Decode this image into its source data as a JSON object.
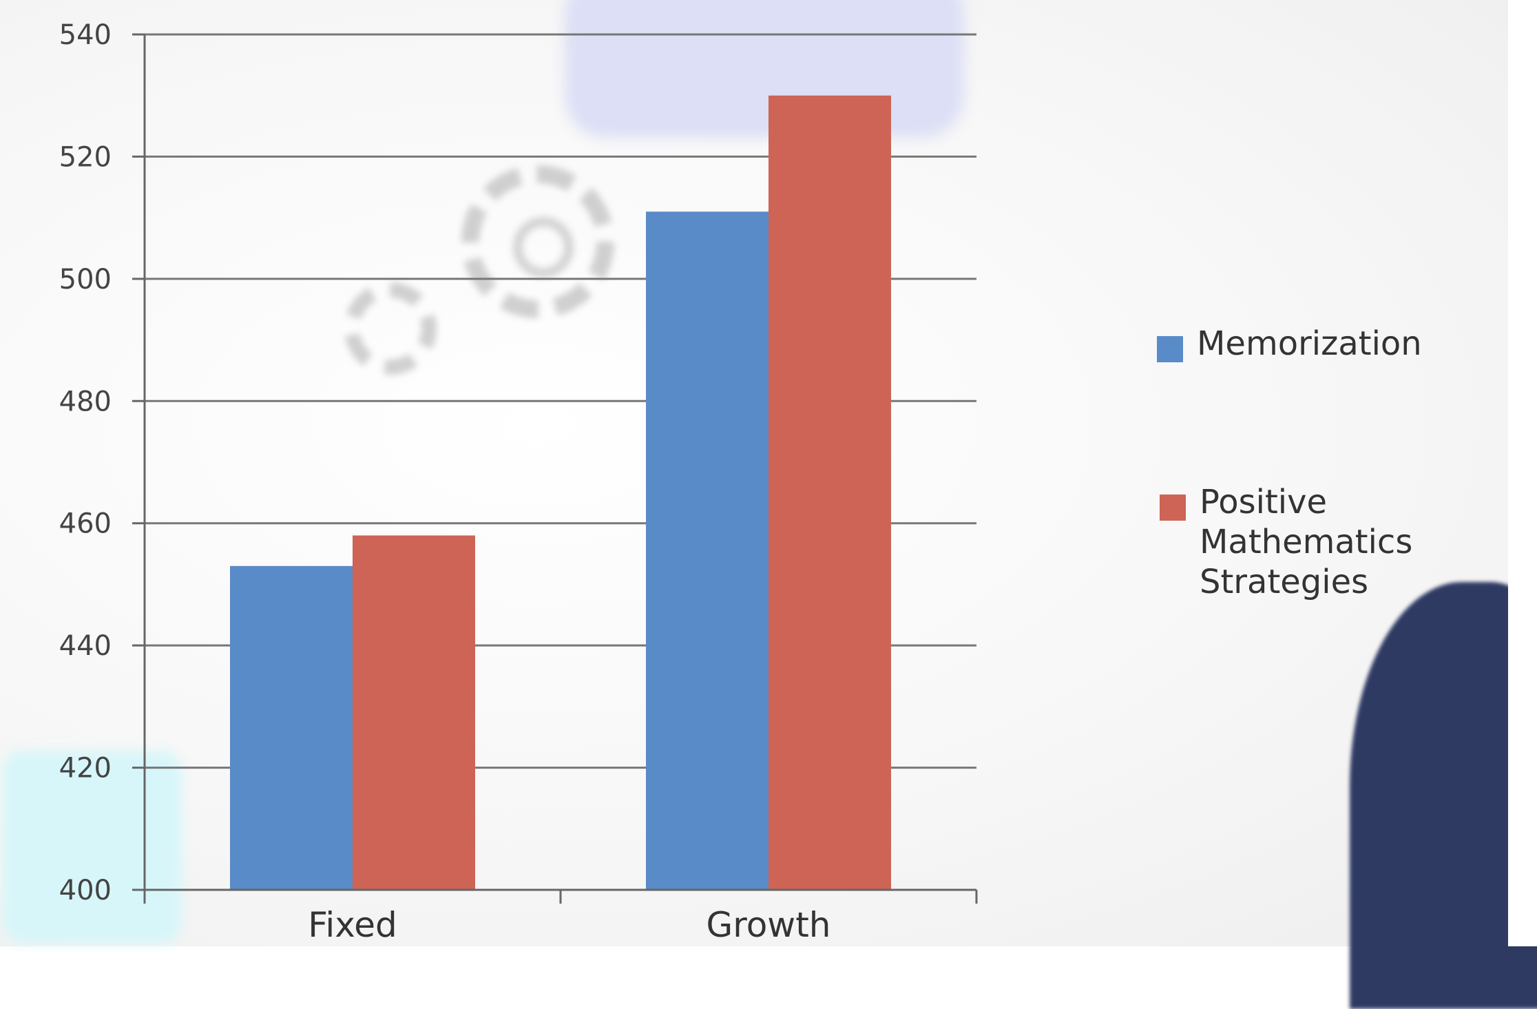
{
  "chart_data": {
    "type": "bar",
    "categories": [
      "Fixed",
      "Growth"
    ],
    "series": [
      {
        "name": "Memorization",
        "color": "#598bc8",
        "values": [
          453,
          511
        ]
      },
      {
        "name": "Positive Mathematics Strategies",
        "color": "#cd6455",
        "values": [
          458,
          530
        ]
      }
    ],
    "ylim": [
      400,
      540
    ],
    "yticks": [
      400,
      420,
      440,
      460,
      480,
      500,
      520,
      540
    ],
    "ytick_labels": [
      "400",
      "420",
      "440",
      "460",
      "480",
      "500",
      "520",
      "540"
    ],
    "title": "",
    "xlabel": "",
    "ylabel": "",
    "grid": true,
    "legend_position": "right"
  },
  "legend": {
    "memorization_label": "Memorization",
    "positive_label": "Positive Mathematics Strategies"
  }
}
